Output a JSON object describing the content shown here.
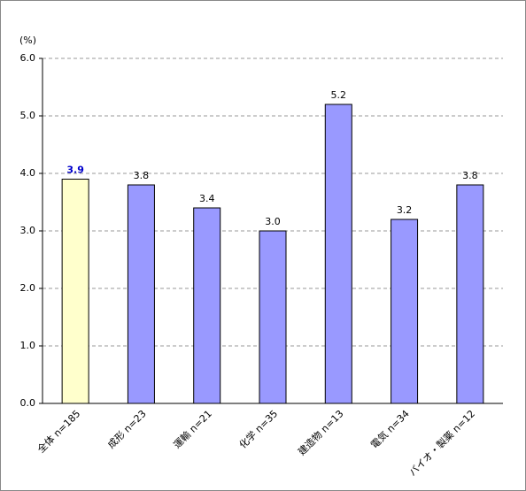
{
  "chart_data": {
    "type": "bar",
    "y_label": "(%)",
    "categories": [
      "全体 n=185",
      "成形 n=23",
      "運輸 n=21",
      "化学 n=35",
      "建造物 n=13",
      "電気 n=34",
      "バイオ・製薬 n=12"
    ],
    "values": [
      3.9,
      3.8,
      3.4,
      3,
      5.2,
      3.2,
      3.8
    ],
    "value_labels": [
      "3.9",
      "3.8",
      "3.4",
      "3.0",
      "5.2",
      "3.2",
      "3.8"
    ],
    "colors": [
      "#ffffcc",
      "#9999ff",
      "#9999ff",
      "#9999ff",
      "#9999ff",
      "#9999ff",
      "#9999ff"
    ],
    "value_label_colors": [
      "#0000cc",
      "#000000",
      "#000000",
      "#000000",
      "#000000",
      "#000000",
      "#000000"
    ],
    "ylim": [
      0,
      6
    ],
    "yticks": [
      {
        "value": 0,
        "label": "0.0"
      },
      {
        "value": 1,
        "label": "1.0"
      },
      {
        "value": 2,
        "label": "2.0"
      },
      {
        "value": 3,
        "label": "3.0"
      },
      {
        "value": 4,
        "label": "4.0"
      },
      {
        "value": 5,
        "label": "5.0"
      },
      {
        "value": 6,
        "label": "6.0"
      }
    ],
    "grid": true
  }
}
